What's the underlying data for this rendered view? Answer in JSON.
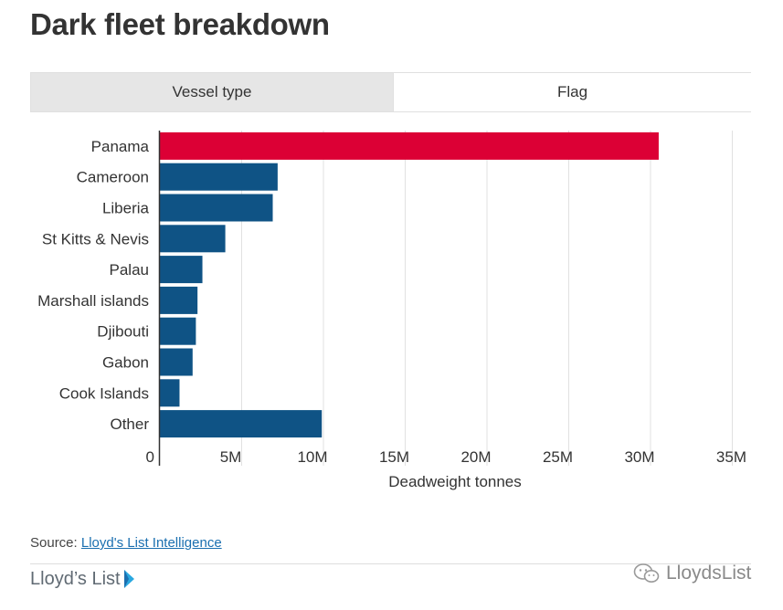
{
  "title": "Dark fleet breakdown",
  "tabs": [
    {
      "label": "Vessel type",
      "active": false
    },
    {
      "label": "Flag",
      "active": true
    }
  ],
  "chart_data": {
    "type": "bar",
    "orientation": "horizontal",
    "categories": [
      "Panama",
      "Cameroon",
      "Liberia",
      "St Kitts & Nevis",
      "Palau",
      "Marshall islands",
      "Djibouti",
      "Gabon",
      "Cook Islands",
      "Other"
    ],
    "values": [
      30500000,
      7200000,
      6900000,
      4000000,
      2600000,
      2300000,
      2200000,
      2000000,
      1200000,
      9900000
    ],
    "highlight": "Panama",
    "xlabel": "Deadweight tonnes",
    "xlim": [
      0,
      35000000
    ],
    "xticks": [
      {
        "value": 0,
        "label": "0"
      },
      {
        "value": 5000000,
        "label": "5M"
      },
      {
        "value": 10000000,
        "label": "10M"
      },
      {
        "value": 15000000,
        "label": "15M"
      },
      {
        "value": 20000000,
        "label": "20M"
      },
      {
        "value": 25000000,
        "label": "25M"
      },
      {
        "value": 30000000,
        "label": "30M"
      },
      {
        "value": 35000000,
        "label": "35M"
      }
    ],
    "grid": true,
    "colors": {
      "highlight": "#dc0035",
      "default": "#0f5385",
      "grid": "#e1e1e1",
      "axis": "#333333"
    }
  },
  "source": {
    "prefix": "Source: ",
    "link_text": "Lloyd's List Intelligence"
  },
  "brand": {
    "logo_text": "Lloyd’s List",
    "icon": "lloyds-list-logo-icon"
  },
  "watermark": {
    "text": "LloydsList",
    "icon": "wechat-icon"
  }
}
